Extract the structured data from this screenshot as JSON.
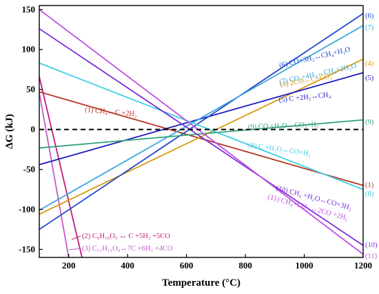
{
  "chart_data": {
    "type": "line",
    "xlabel": "Temperature (°C)",
    "ylabel": "ΔG (kJ)",
    "xlim": [
      100,
      1200
    ],
    "ylim": [
      -160,
      155
    ],
    "xticks": [
      200,
      400,
      600,
      800,
      1000,
      1200
    ],
    "yticks": [
      -150,
      -100,
      -50,
      0,
      50,
      100,
      150
    ],
    "zero_line": "dashed",
    "series": [
      {
        "id": "1",
        "end_label": "(1)",
        "label": "(1) CH₄↔C +2H₂",
        "color": "#b5351f",
        "x": [
          100,
          1200
        ],
        "y": [
          47,
          -70
        ]
      },
      {
        "id": "2",
        "end_label": "",
        "label": "(2) C₆H₁₀O₅ ↔ C +5H₂ +5CO",
        "color": "#c2187a",
        "x": [
          100,
          245
        ],
        "y": [
          66,
          -160
        ]
      },
      {
        "id": "3",
        "end_label": "",
        "label": "(3) C₁₁H₁₂O₄↔7C +6H₂ +4CO",
        "color": "#c05ac8",
        "x": [
          100,
          200
        ],
        "y": [
          46,
          -160
        ]
      },
      {
        "id": "4",
        "end_label": "(4)",
        "label": "(4) 2CO↔C+CO₂",
        "color": "#d69a10",
        "x": [
          100,
          1200
        ],
        "y": [
          -106,
          88
        ]
      },
      {
        "id": "5",
        "end_label": "(5)",
        "label": "(5) C +2H₂↔CH₄",
        "color": "#1c1cc0",
        "x": [
          100,
          1200
        ],
        "y": [
          -44,
          71
        ]
      },
      {
        "id": "6",
        "end_label": "(6)",
        "label": "(6) CO+3H₂↔CH₄+H₂O",
        "color": "#2248c8",
        "x": [
          100,
          1200
        ],
        "y": [
          -125,
          145
        ]
      },
      {
        "id": "7",
        "end_label": "(7)",
        "label": "(7) CO₂+4H₂↔CH₄+2H₂O",
        "color": "#3aa4de",
        "x": [
          100,
          1200
        ],
        "y": [
          -101,
          130
        ]
      },
      {
        "id": "8",
        "end_label": "(8)",
        "label": "(8) C +H₂O↔CO+H₂",
        "color": "#3fcfe6",
        "x": [
          100,
          1200
        ],
        "y": [
          83,
          -75
        ]
      },
      {
        "id": "9",
        "end_label": "(9)",
        "label": "(9) CO +H₂O↔CO₂+H₂",
        "color": "#33a37a",
        "x": [
          100,
          1200
        ],
        "y": [
          -23,
          12
        ]
      },
      {
        "id": "10",
        "end_label": "(10)",
        "label": "(10) CH₄ +H₂O↔CO+3H₂",
        "color": "#7a2fd6",
        "x": [
          100,
          1200
        ],
        "y": [
          126,
          -145
        ]
      },
      {
        "id": "11",
        "end_label": "(11)",
        "label": "(11) CH₄+CO₂ ↔2CO +2H₂",
        "color": "#c14ee0",
        "x": [
          100,
          1200
        ],
        "y": [
          150,
          -156
        ]
      }
    ]
  }
}
